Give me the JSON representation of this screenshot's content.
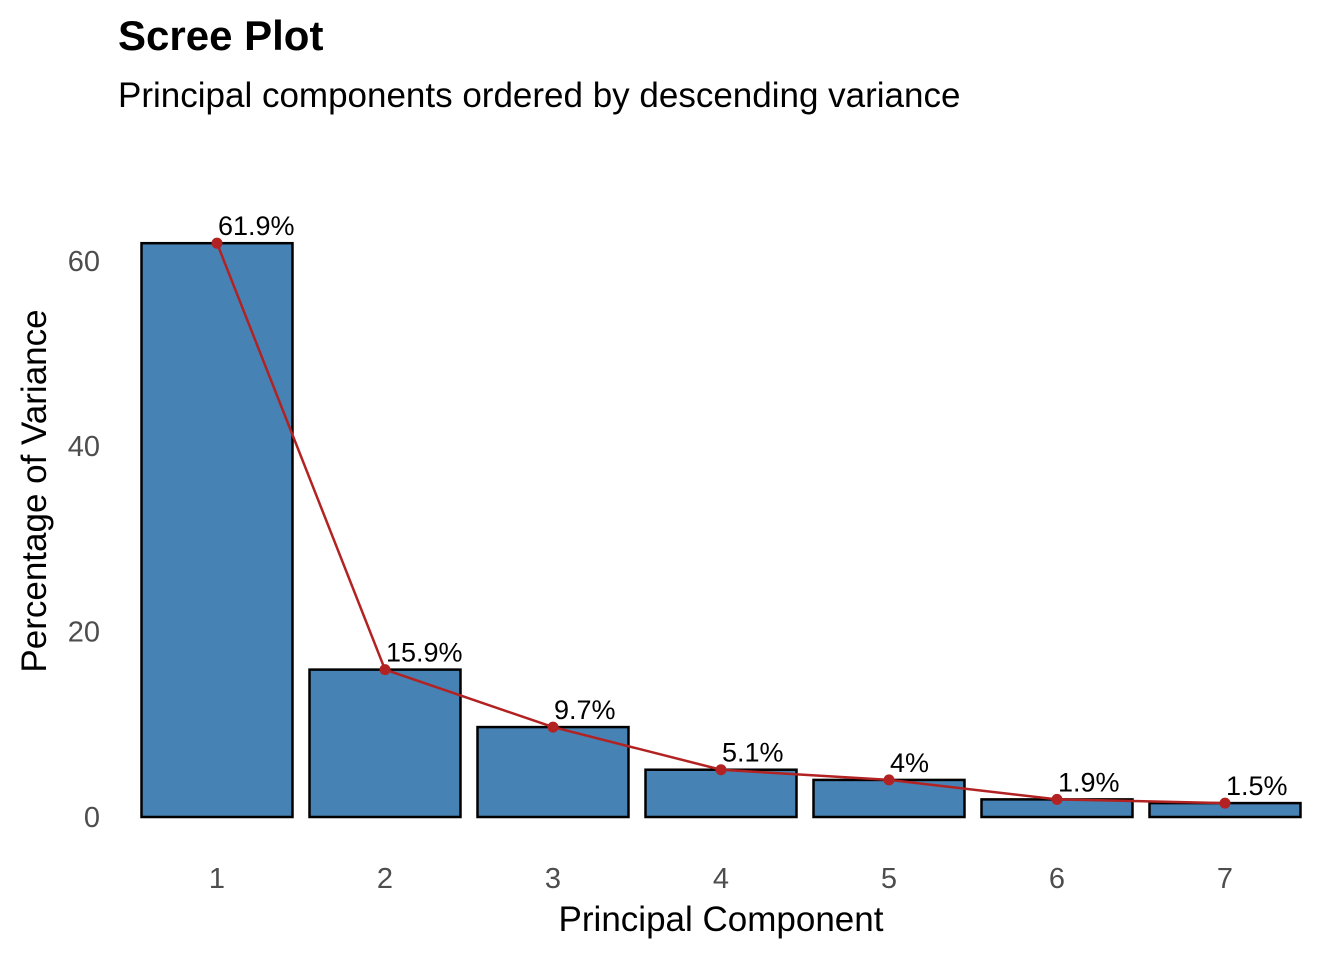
{
  "chart_data": {
    "type": "bar",
    "title": "Scree Plot",
    "subtitle": "Principal components ordered by descending variance",
    "xlabel": "Principal Component",
    "ylabel": "Percentage of Variance",
    "categories": [
      "1",
      "2",
      "3",
      "4",
      "5",
      "6",
      "7"
    ],
    "values": [
      61.9,
      15.9,
      9.7,
      5.1,
      4.0,
      1.9,
      1.5
    ],
    "data_labels": [
      "61.9%",
      "15.9%",
      "9.7%",
      "5.1%",
      "4%",
      "1.9%",
      "1.5%"
    ],
    "y_ticks": [
      0,
      20,
      40,
      60
    ],
    "ylim": [
      0,
      65
    ],
    "overlay": "line with points through bar tops",
    "grid": false,
    "legend": "none",
    "colors": {
      "bar_fill": "#4682B4",
      "bar_outline": "#000000",
      "line": "#B22222",
      "point": "#B22222",
      "tick_text": "#4D4D4D"
    }
  }
}
